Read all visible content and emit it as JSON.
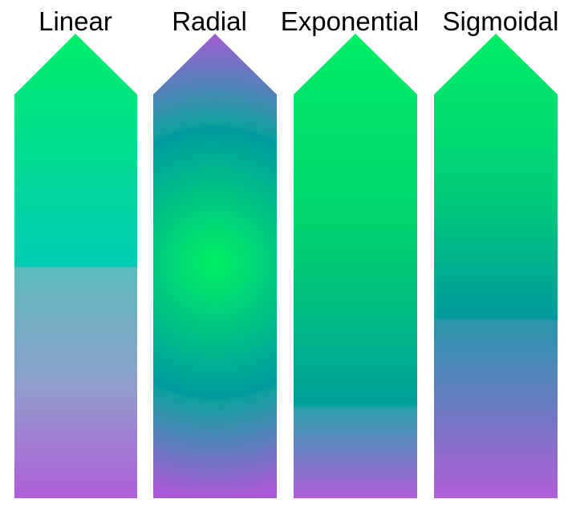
{
  "panels": [
    {
      "label": "Linear"
    },
    {
      "label": "Radial"
    },
    {
      "label": "Exponential"
    },
    {
      "label": "Sigmoidal"
    }
  ]
}
